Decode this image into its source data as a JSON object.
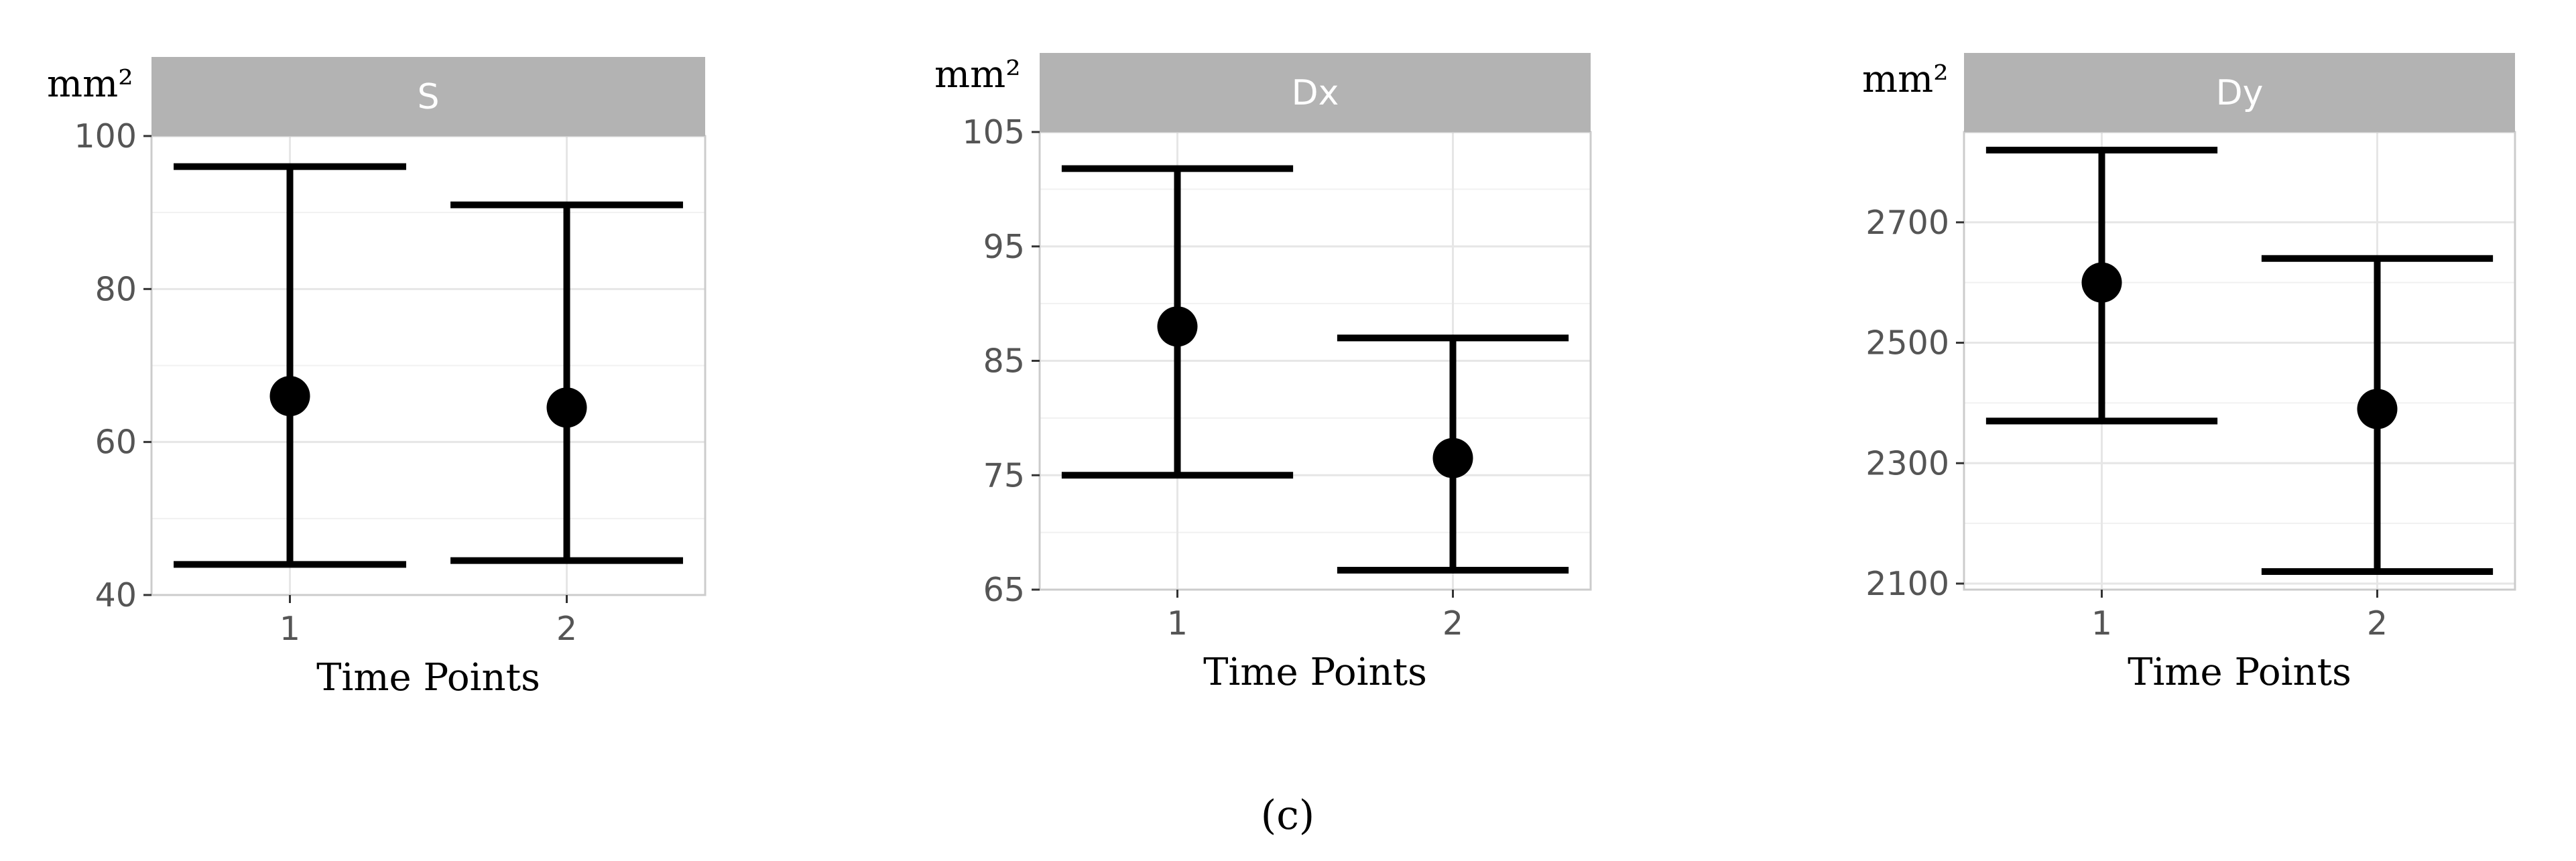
{
  "caption": "(c)",
  "chart_data": [
    {
      "type": "errorbar",
      "title": "S",
      "ylabel": "mm²",
      "xlabel": "Time Points",
      "categories": [
        "1",
        "2"
      ],
      "values": [
        66,
        64.5
      ],
      "lower": [
        44,
        44.5
      ],
      "upper": [
        96,
        91
      ],
      "ylim": [
        40,
        100
      ],
      "yticks": [
        40,
        60,
        80,
        100
      ],
      "grid": true,
      "colors": {
        "marks": "#000000",
        "strip": "#b3b3b3",
        "grid": "#e6e6e6"
      }
    },
    {
      "type": "errorbar",
      "title": "Dx",
      "ylabel": "mm²",
      "xlabel": "Time Points",
      "categories": [
        "1",
        "2"
      ],
      "values": [
        88,
        76.5
      ],
      "lower": [
        75,
        66.7
      ],
      "upper": [
        101.8,
        87
      ],
      "ylim": [
        65,
        105
      ],
      "yticks": [
        65,
        75,
        85,
        95,
        105
      ],
      "grid": true,
      "colors": {
        "marks": "#000000",
        "strip": "#b3b3b3",
        "grid": "#e6e6e6"
      }
    },
    {
      "type": "errorbar",
      "title": "Dy",
      "ylabel": "mm²",
      "xlabel": "Time Points",
      "categories": [
        "1",
        "2"
      ],
      "values": [
        2600,
        2390
      ],
      "lower": [
        2370,
        2120
      ],
      "upper": [
        2820,
        2640
      ],
      "ylim": [
        2090,
        2850
      ],
      "yticks": [
        2100,
        2300,
        2500,
        2700
      ],
      "grid": true,
      "colors": {
        "marks": "#000000",
        "strip": "#b3b3b3",
        "grid": "#e6e6e6"
      }
    }
  ]
}
